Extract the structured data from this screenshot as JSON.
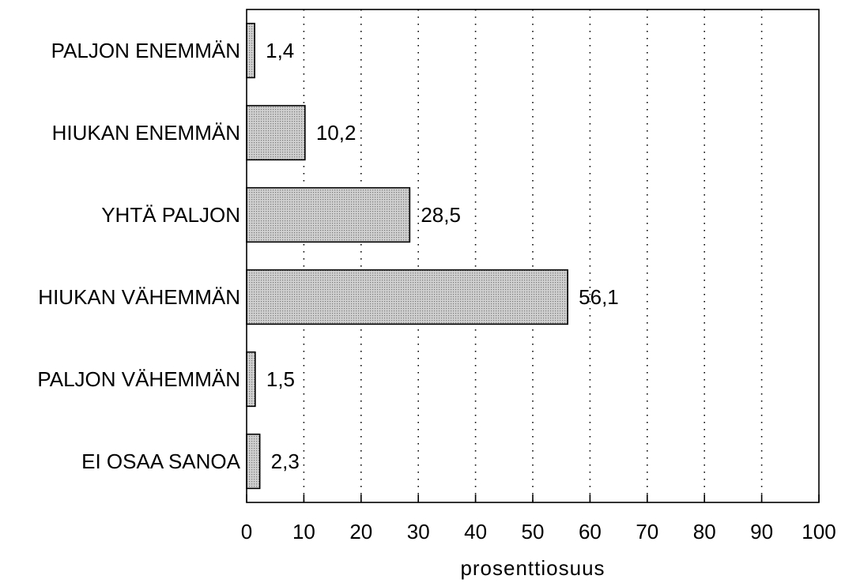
{
  "chart_data": {
    "type": "bar",
    "orientation": "horizontal",
    "categories": [
      "PALJON ENEMMÄN",
      "HIUKAN ENEMMÄN",
      "YHTÄ PALJON",
      "HIUKAN VÄHEMMÄN",
      "PALJON VÄHEMMÄN",
      "EI OSAA SANOA"
    ],
    "values": [
      1.4,
      10.2,
      28.5,
      56.1,
      1.5,
      2.3
    ],
    "value_labels": [
      "1,4",
      "10,2",
      "28,5",
      "56,1",
      "1,5",
      "2,3"
    ],
    "xlabel": "prosenttiosuus",
    "xlim": [
      0,
      100
    ],
    "xticks": [
      0,
      10,
      20,
      30,
      40,
      50,
      60,
      70,
      80,
      90,
      100
    ],
    "grid": "vertical dotted",
    "bar_color": "#d0d0d0",
    "pattern_dot_color": "#7a7a7a"
  }
}
